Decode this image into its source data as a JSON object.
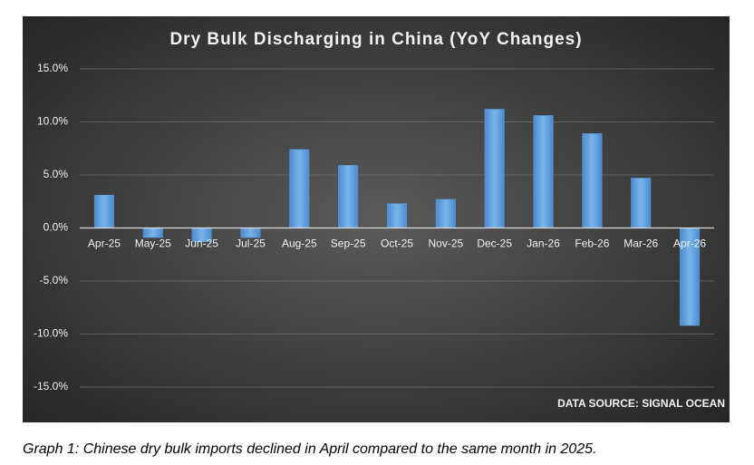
{
  "chart_data": {
    "type": "bar",
    "title": "Dry Bulk Discharging in China (YoY Changes)",
    "categories": [
      "Apr-25",
      "May-25",
      "Jun-25",
      "Jul-25",
      "Aug-25",
      "Sep-25",
      "Oct-25",
      "Nov-25",
      "Dec-25",
      "Jan-26",
      "Feb-26",
      "Mar-26",
      "Apr-26"
    ],
    "values": [
      3.1,
      -0.9,
      -1.3,
      -0.9,
      7.4,
      5.9,
      2.3,
      2.7,
      11.2,
      10.6,
      8.9,
      4.7,
      -9.2
    ],
    "color": "#5b9bd5",
    "ylim": [
      -15,
      15
    ],
    "yticks": [
      {
        "value": -15,
        "label": "-15.0%"
      },
      {
        "value": -10,
        "label": "-10.0%"
      },
      {
        "value": -5,
        "label": "-5.0%"
      },
      {
        "value": 0,
        "label": "0.0%"
      },
      {
        "value": 5,
        "label": "5.0%"
      },
      {
        "value": 10,
        "label": "10.0%"
      },
      {
        "value": 15,
        "label": "15.0%"
      }
    ],
    "grid": true,
    "annotation": "DATA SOURCE: SIGNAL OCEAN"
  },
  "caption": "Graph 1: Chinese dry bulk imports declined in April compared to the same month in 2025."
}
